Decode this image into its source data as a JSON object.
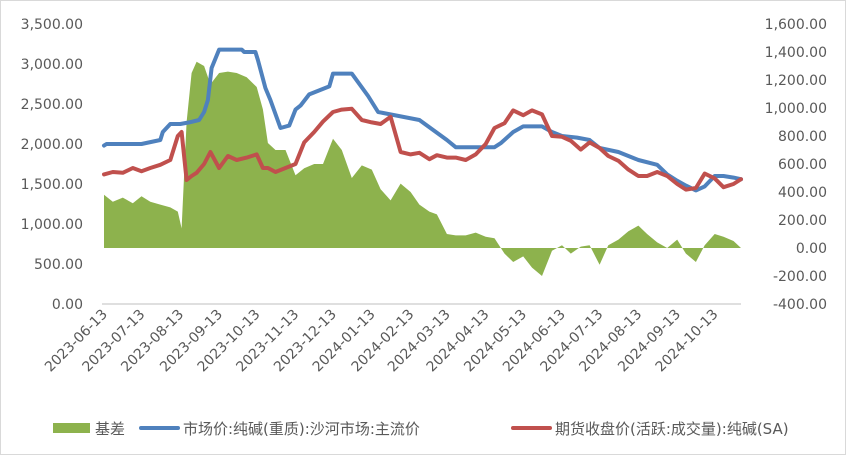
{
  "chart_data": {
    "type": "line",
    "title": "",
    "xlabel": "",
    "ylabel": "",
    "grid": false,
    "legend_position": "bottom",
    "y_left": {
      "min": 0,
      "max": 3500,
      "ticks": [
        "0.00",
        "500.00",
        "1,000.00",
        "1,500.00",
        "2,000.00",
        "2,500.00",
        "3,000.00",
        "3,500.00"
      ]
    },
    "y_right": {
      "min": -400,
      "max": 1600,
      "ticks": [
        "-400.00",
        "-200.00",
        "0.00",
        "200.00",
        "400.00",
        "600.00",
        "800.00",
        "1,000.00",
        "1,200.00",
        "1,400.00",
        "1,600.00"
      ]
    },
    "x_tick_labels": [
      "2023-06-13",
      "2023-07-13",
      "2023-08-13",
      "2023-09-13",
      "2023-10-13",
      "2023-11-13",
      "2023-12-13",
      "2024-01-13",
      "2024-02-13",
      "2024-03-13",
      "2024-04-13",
      "2024-05-13",
      "2024-06-13",
      "2024-07-13",
      "2024-08-13",
      "2024-09-13",
      "2024-10-13"
    ],
    "series": [
      {
        "name": "基差",
        "kind": "area",
        "axis": "right",
        "color": "#8db24d",
        "x": [
          "2023-06-13",
          "2023-06-20",
          "2023-06-28",
          "2023-07-06",
          "2023-07-13",
          "2023-07-20",
          "2023-07-28",
          "2023-08-05",
          "2023-08-11",
          "2023-08-14",
          "2023-08-18",
          "2023-08-22",
          "2023-08-26",
          "2023-09-01",
          "2023-09-06",
          "2023-09-13",
          "2023-09-20",
          "2023-09-27",
          "2023-10-05",
          "2023-10-13",
          "2023-10-18",
          "2023-10-22",
          "2023-10-28",
          "2023-11-05",
          "2023-11-13",
          "2023-11-20",
          "2023-11-28",
          "2023-12-05",
          "2023-12-13",
          "2023-12-20",
          "2023-12-28",
          "2024-01-05",
          "2024-01-13",
          "2024-01-20",
          "2024-01-28",
          "2024-02-05",
          "2024-02-13",
          "2024-02-20",
          "2024-02-28",
          "2024-03-05",
          "2024-03-13",
          "2024-03-20",
          "2024-03-28",
          "2024-04-05",
          "2024-04-13",
          "2024-04-20",
          "2024-04-28",
          "2024-05-05",
          "2024-05-13",
          "2024-05-20",
          "2024-05-28",
          "2024-06-05",
          "2024-06-13",
          "2024-06-20",
          "2024-06-28",
          "2024-07-05",
          "2024-07-13",
          "2024-07-20",
          "2024-07-28",
          "2024-08-05",
          "2024-08-13",
          "2024-08-20",
          "2024-08-28",
          "2024-09-05",
          "2024-09-13",
          "2024-09-20",
          "2024-09-28",
          "2024-10-05",
          "2024-10-13",
          "2024-10-20",
          "2024-10-28",
          "2024-11-03"
        ],
        "values": [
          380,
          330,
          360,
          320,
          370,
          330,
          310,
          290,
          260,
          140,
          900,
          1250,
          1330,
          1300,
          1170,
          1250,
          1260,
          1250,
          1220,
          1150,
          990,
          750,
          700,
          700,
          520,
          570,
          600,
          600,
          780,
          700,
          500,
          590,
          560,
          420,
          340,
          460,
          400,
          310,
          260,
          240,
          100,
          90,
          90,
          110,
          80,
          70,
          -40,
          -100,
          -60,
          -140,
          -200,
          -20,
          20,
          -40,
          10,
          20,
          -120,
          20,
          60,
          120,
          160,
          100,
          40,
          0,
          60,
          -40,
          -100,
          20,
          100,
          80,
          50,
          0
        ]
      },
      {
        "name": "市场价:纯碱(重质):沙河市场:主流价",
        "kind": "line",
        "axis": "left",
        "color": "#4f81bd",
        "x": [
          "2023-06-13",
          "2023-06-15",
          "2023-07-13",
          "2023-07-28",
          "2023-07-30",
          "2023-08-05",
          "2023-08-13",
          "2023-08-20",
          "2023-08-28",
          "2023-09-01",
          "2023-09-04",
          "2023-09-07",
          "2023-09-13",
          "2023-10-01",
          "2023-10-03",
          "2023-10-12",
          "2023-10-14",
          "2023-10-20",
          "2023-10-24",
          "2023-11-01",
          "2023-11-08",
          "2023-11-13",
          "2023-11-17",
          "2023-11-24",
          "2023-12-10",
          "2023-12-13",
          "2023-12-20",
          "2023-12-28",
          "2024-01-10",
          "2024-01-18",
          "2024-02-20",
          "2024-03-13",
          "2024-03-20",
          "2024-04-13",
          "2024-04-20",
          "2024-04-25",
          "2024-05-05",
          "2024-05-13",
          "2024-05-28",
          "2024-06-05",
          "2024-06-13",
          "2024-06-25",
          "2024-07-05",
          "2024-07-13",
          "2024-07-28",
          "2024-08-05",
          "2024-08-13",
          "2024-08-28",
          "2024-09-05",
          "2024-09-13",
          "2024-09-20",
          "2024-09-28",
          "2024-10-05",
          "2024-10-13",
          "2024-10-20",
          "2024-10-28",
          "2024-11-03"
        ],
        "values": [
          1980,
          2000,
          2000,
          2050,
          2150,
          2250,
          2250,
          2270,
          2300,
          2400,
          2550,
          2950,
          3180,
          3180,
          3150,
          3150,
          3050,
          2700,
          2550,
          2200,
          2230,
          2430,
          2480,
          2620,
          2720,
          2880,
          2880,
          2880,
          2600,
          2400,
          2300,
          2050,
          1960,
          1960,
          1960,
          2010,
          2150,
          2220,
          2220,
          2150,
          2100,
          2080,
          2050,
          1950,
          1900,
          1850,
          1800,
          1740,
          1620,
          1540,
          1480,
          1420,
          1470,
          1600,
          1600,
          1580,
          1560
        ]
      },
      {
        "name": "期货收盘价(活跃:成交量):纯碱(SA)",
        "kind": "line",
        "axis": "left",
        "color": "#c0504d",
        "x": [
          "2023-06-13",
          "2023-06-20",
          "2023-06-28",
          "2023-07-06",
          "2023-07-13",
          "2023-07-20",
          "2023-07-28",
          "2023-08-05",
          "2023-08-11",
          "2023-08-14",
          "2023-08-18",
          "2023-08-22",
          "2023-08-26",
          "2023-09-01",
          "2023-09-06",
          "2023-09-13",
          "2023-09-20",
          "2023-09-27",
          "2023-10-05",
          "2023-10-13",
          "2023-10-18",
          "2023-10-22",
          "2023-10-28",
          "2023-11-05",
          "2023-11-13",
          "2023-11-20",
          "2023-11-28",
          "2023-12-05",
          "2023-12-13",
          "2023-12-20",
          "2023-12-28",
          "2024-01-05",
          "2024-01-13",
          "2024-01-20",
          "2024-01-28",
          "2024-02-05",
          "2024-02-13",
          "2024-02-20",
          "2024-02-28",
          "2024-03-05",
          "2024-03-13",
          "2024-03-20",
          "2024-03-28",
          "2024-04-05",
          "2024-04-13",
          "2024-04-20",
          "2024-04-28",
          "2024-05-05",
          "2024-05-13",
          "2024-05-20",
          "2024-05-28",
          "2024-06-05",
          "2024-06-13",
          "2024-06-20",
          "2024-06-28",
          "2024-07-05",
          "2024-07-13",
          "2024-07-20",
          "2024-07-28",
          "2024-08-05",
          "2024-08-13",
          "2024-08-20",
          "2024-08-28",
          "2024-09-05",
          "2024-09-13",
          "2024-09-20",
          "2024-09-28",
          "2024-10-05",
          "2024-10-13",
          "2024-10-20",
          "2024-10-28",
          "2024-11-03"
        ],
        "values": [
          1620,
          1650,
          1640,
          1700,
          1660,
          1700,
          1740,
          1800,
          2100,
          2150,
          1550,
          1600,
          1640,
          1750,
          1900,
          1700,
          1850,
          1800,
          1830,
          1870,
          1700,
          1700,
          1650,
          1700,
          1750,
          2020,
          2150,
          2280,
          2400,
          2430,
          2440,
          2300,
          2270,
          2250,
          2340,
          1900,
          1870,
          1890,
          1810,
          1860,
          1830,
          1830,
          1800,
          1870,
          2000,
          2200,
          2260,
          2420,
          2360,
          2420,
          2370,
          2100,
          2090,
          2040,
          1930,
          2020,
          1950,
          1850,
          1790,
          1680,
          1600,
          1600,
          1650,
          1600,
          1500,
          1430,
          1450,
          1630,
          1570,
          1460,
          1500,
          1560
        ]
      }
    ]
  },
  "legend": [
    {
      "label": "基差",
      "swatch": "rect",
      "color": "#8db24d"
    },
    {
      "label": "市场价:纯碱(重质):沙河市场:主流价",
      "swatch": "line",
      "color": "#4f81bd"
    },
    {
      "label": "期货收盘价(活跃:成交量):纯碱(SA)",
      "swatch": "line",
      "color": "#c0504d"
    }
  ]
}
